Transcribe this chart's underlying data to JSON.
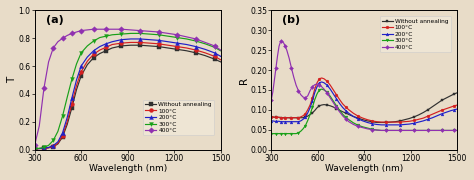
{
  "title_a": "(a)",
  "title_b": "(b)",
  "xlabel": "Wavelength (nm)",
  "ylabel_a": "T",
  "ylabel_b": "R",
  "xlim": [
    300,
    1500
  ],
  "ylim_a": [
    0.0,
    1.0
  ],
  "ylim_b": [
    0.0,
    0.35
  ],
  "xticks": [
    300,
    600,
    900,
    1200,
    1500
  ],
  "yticks_a": [
    0.0,
    0.2,
    0.4,
    0.6,
    0.8,
    1.0
  ],
  "yticks_b": [
    0.0,
    0.05,
    0.1,
    0.15,
    0.2,
    0.25,
    0.3,
    0.35
  ],
  "legend_labels": [
    "Without annealing",
    "100°C",
    "200°C",
    "300°C",
    "400°C"
  ],
  "colors": [
    "#303030",
    "#d42020",
    "#2020c8",
    "#18a018",
    "#9030b0"
  ],
  "markers": [
    "s",
    "o",
    "^",
    "v",
    "D"
  ],
  "bg_color": "#e8dcc8",
  "wavelengths_sparse": [
    300,
    330,
    360,
    390,
    420,
    450,
    480,
    510,
    540,
    570,
    600,
    640,
    680,
    720,
    760,
    800,
    860,
    920,
    980,
    1040,
    1100,
    1160,
    1220,
    1280,
    1340,
    1400,
    1460,
    1500
  ],
  "T_no_anneal_s": [
    0.005,
    0.007,
    0.008,
    0.012,
    0.02,
    0.04,
    0.09,
    0.18,
    0.3,
    0.43,
    0.53,
    0.61,
    0.66,
    0.69,
    0.71,
    0.73,
    0.745,
    0.75,
    0.75,
    0.745,
    0.74,
    0.73,
    0.72,
    0.71,
    0.695,
    0.675,
    0.65,
    0.63
  ],
  "T_100_s": [
    0.005,
    0.007,
    0.008,
    0.013,
    0.022,
    0.045,
    0.1,
    0.2,
    0.33,
    0.46,
    0.56,
    0.635,
    0.685,
    0.715,
    0.735,
    0.755,
    0.765,
    0.77,
    0.77,
    0.765,
    0.76,
    0.75,
    0.74,
    0.73,
    0.715,
    0.695,
    0.67,
    0.645
  ],
  "T_200_s": [
    0.005,
    0.007,
    0.009,
    0.015,
    0.028,
    0.055,
    0.12,
    0.23,
    0.37,
    0.5,
    0.6,
    0.665,
    0.71,
    0.74,
    0.76,
    0.775,
    0.79,
    0.795,
    0.795,
    0.79,
    0.785,
    0.775,
    0.765,
    0.755,
    0.74,
    0.72,
    0.695,
    0.67
  ],
  "T_300_s": [
    0.005,
    0.008,
    0.015,
    0.03,
    0.065,
    0.13,
    0.24,
    0.375,
    0.505,
    0.615,
    0.695,
    0.745,
    0.78,
    0.805,
    0.815,
    0.825,
    0.83,
    0.835,
    0.835,
    0.83,
    0.825,
    0.815,
    0.805,
    0.795,
    0.78,
    0.76,
    0.735,
    0.71
  ],
  "T_400_s": [
    0.03,
    0.17,
    0.44,
    0.63,
    0.73,
    0.775,
    0.8,
    0.82,
    0.835,
    0.845,
    0.855,
    0.86,
    0.865,
    0.865,
    0.865,
    0.865,
    0.865,
    0.86,
    0.855,
    0.85,
    0.845,
    0.835,
    0.825,
    0.81,
    0.795,
    0.77,
    0.745,
    0.715
  ],
  "wavelengths_dense": [
    300,
    310,
    320,
    330,
    340,
    350,
    360,
    370,
    380,
    390,
    400,
    415,
    430,
    445,
    460,
    475,
    490,
    505,
    520,
    535,
    550,
    565,
    580,
    595,
    610,
    625,
    640,
    660,
    680,
    700,
    720,
    740,
    760,
    780,
    800,
    830,
    860,
    890,
    920,
    950,
    980,
    1010,
    1040,
    1070,
    1100,
    1130,
    1160,
    1190,
    1220,
    1250,
    1280,
    1310,
    1340,
    1370,
    1400,
    1430,
    1460,
    1480,
    1500
  ],
  "R_no_anneal_d": [
    0.082,
    0.082,
    0.081,
    0.081,
    0.081,
    0.081,
    0.08,
    0.08,
    0.08,
    0.08,
    0.08,
    0.08,
    0.08,
    0.08,
    0.08,
    0.08,
    0.08,
    0.08,
    0.082,
    0.084,
    0.088,
    0.092,
    0.098,
    0.105,
    0.11,
    0.112,
    0.113,
    0.112,
    0.11,
    0.107,
    0.103,
    0.099,
    0.095,
    0.092,
    0.088,
    0.083,
    0.079,
    0.075,
    0.072,
    0.07,
    0.068,
    0.068,
    0.068,
    0.069,
    0.07,
    0.072,
    0.075,
    0.078,
    0.082,
    0.087,
    0.093,
    0.1,
    0.108,
    0.116,
    0.124,
    0.13,
    0.136,
    0.14,
    0.143
  ],
  "R_100_d": [
    0.082,
    0.082,
    0.081,
    0.081,
    0.081,
    0.081,
    0.08,
    0.08,
    0.08,
    0.08,
    0.08,
    0.08,
    0.08,
    0.08,
    0.08,
    0.08,
    0.082,
    0.085,
    0.09,
    0.1,
    0.112,
    0.13,
    0.152,
    0.168,
    0.178,
    0.18,
    0.178,
    0.172,
    0.162,
    0.15,
    0.138,
    0.126,
    0.115,
    0.107,
    0.1,
    0.091,
    0.084,
    0.079,
    0.075,
    0.072,
    0.07,
    0.069,
    0.069,
    0.069,
    0.069,
    0.069,
    0.07,
    0.071,
    0.073,
    0.076,
    0.079,
    0.084,
    0.089,
    0.094,
    0.099,
    0.103,
    0.107,
    0.11,
    0.112
  ],
  "R_200_d": [
    0.072,
    0.072,
    0.071,
    0.071,
    0.071,
    0.071,
    0.07,
    0.07,
    0.07,
    0.07,
    0.07,
    0.07,
    0.07,
    0.07,
    0.07,
    0.07,
    0.072,
    0.076,
    0.082,
    0.092,
    0.105,
    0.122,
    0.143,
    0.158,
    0.168,
    0.17,
    0.168,
    0.162,
    0.152,
    0.14,
    0.128,
    0.116,
    0.106,
    0.098,
    0.091,
    0.083,
    0.077,
    0.072,
    0.068,
    0.065,
    0.063,
    0.062,
    0.062,
    0.062,
    0.062,
    0.062,
    0.063,
    0.064,
    0.066,
    0.069,
    0.072,
    0.076,
    0.08,
    0.085,
    0.09,
    0.094,
    0.098,
    0.1,
    0.102
  ],
  "R_300_d": [
    0.04,
    0.04,
    0.04,
    0.04,
    0.04,
    0.04,
    0.04,
    0.04,
    0.04,
    0.04,
    0.04,
    0.04,
    0.04,
    0.04,
    0.04,
    0.042,
    0.046,
    0.052,
    0.06,
    0.073,
    0.088,
    0.106,
    0.125,
    0.14,
    0.15,
    0.152,
    0.15,
    0.144,
    0.134,
    0.122,
    0.11,
    0.099,
    0.089,
    0.081,
    0.075,
    0.067,
    0.061,
    0.057,
    0.054,
    0.051,
    0.049,
    0.048,
    0.048,
    0.048,
    0.048,
    0.048,
    0.048,
    0.048,
    0.048,
    0.048,
    0.048,
    0.048,
    0.048,
    0.048,
    0.048,
    0.048,
    0.048,
    0.048,
    0.048
  ],
  "R_400_d": [
    0.125,
    0.145,
    0.175,
    0.205,
    0.235,
    0.26,
    0.272,
    0.272,
    0.268,
    0.26,
    0.25,
    0.23,
    0.205,
    0.182,
    0.162,
    0.148,
    0.138,
    0.132,
    0.13,
    0.135,
    0.148,
    0.158,
    0.163,
    0.165,
    0.163,
    0.158,
    0.152,
    0.142,
    0.13,
    0.118,
    0.106,
    0.095,
    0.085,
    0.077,
    0.07,
    0.063,
    0.058,
    0.055,
    0.052,
    0.05,
    0.049,
    0.048,
    0.048,
    0.048,
    0.048,
    0.048,
    0.048,
    0.048,
    0.048,
    0.048,
    0.048,
    0.048,
    0.048,
    0.048,
    0.048,
    0.048,
    0.048,
    0.048,
    0.048
  ]
}
